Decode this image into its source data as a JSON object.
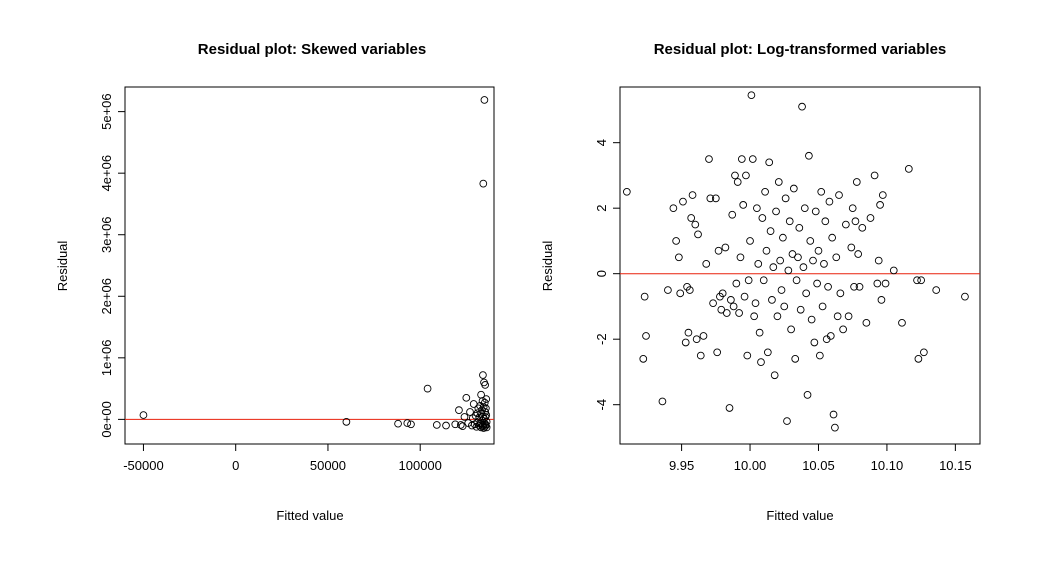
{
  "chart_data": [
    {
      "type": "scatter",
      "title": "Residual plot: Skewed variables",
      "xlabel": "Fitted value",
      "ylabel": "Residual",
      "xlim": [
        -60000,
        140000
      ],
      "ylim": [
        -400000,
        5400000
      ],
      "x_ticks": [
        -50000,
        0,
        50000,
        100000
      ],
      "x_tick_labels": [
        "-50000",
        "0",
        "50000",
        "100000"
      ],
      "y_ticks": [
        0,
        1000000,
        2000000,
        3000000,
        4000000,
        5000000
      ],
      "y_tick_labels": [
        "0e+00",
        "1e+06",
        "2e+06",
        "3e+06",
        "4e+06",
        "5e+06"
      ],
      "reference_line_y": 0,
      "reference_line_color": "#e8200c",
      "points": [
        {
          "x": -50000,
          "y": 70000
        },
        {
          "x": 60000,
          "y": -40000
        },
        {
          "x": 88000,
          "y": -70000
        },
        {
          "x": 93000,
          "y": -60000
        },
        {
          "x": 95000,
          "y": -80000
        },
        {
          "x": 104000,
          "y": 500000
        },
        {
          "x": 109000,
          "y": -90000
        },
        {
          "x": 114000,
          "y": -100000
        },
        {
          "x": 119000,
          "y": -80000
        },
        {
          "x": 121000,
          "y": 150000
        },
        {
          "x": 122000,
          "y": -90000
        },
        {
          "x": 123000,
          "y": -110000
        },
        {
          "x": 124000,
          "y": 40000
        },
        {
          "x": 125000,
          "y": 350000
        },
        {
          "x": 126000,
          "y": -60000
        },
        {
          "x": 127000,
          "y": 120000
        },
        {
          "x": 128000,
          "y": -100000
        },
        {
          "x": 128500,
          "y": 20000
        },
        {
          "x": 129000,
          "y": 250000
        },
        {
          "x": 129500,
          "y": -80000
        },
        {
          "x": 130000,
          "y": 60000
        },
        {
          "x": 130500,
          "y": -120000
        },
        {
          "x": 131000,
          "y": 100000
        },
        {
          "x": 131000,
          "y": -50000
        },
        {
          "x": 131500,
          "y": 180000
        },
        {
          "x": 132000,
          "y": -100000
        },
        {
          "x": 132000,
          "y": 30000
        },
        {
          "x": 132500,
          "y": 220000
        },
        {
          "x": 132500,
          "y": -70000
        },
        {
          "x": 133000,
          "y": 90000
        },
        {
          "x": 133000,
          "y": -130000
        },
        {
          "x": 133000,
          "y": 400000
        },
        {
          "x": 133500,
          "y": 150000
        },
        {
          "x": 133500,
          "y": -20000
        },
        {
          "x": 133800,
          "y": 300000
        },
        {
          "x": 133800,
          "y": -110000
        },
        {
          "x": 134000,
          "y": 720000
        },
        {
          "x": 134000,
          "y": 50000
        },
        {
          "x": 134200,
          "y": 3830000
        },
        {
          "x": 134200,
          "y": -90000
        },
        {
          "x": 134400,
          "y": 200000
        },
        {
          "x": 134400,
          "y": -140000
        },
        {
          "x": 134600,
          "y": 600000
        },
        {
          "x": 134600,
          "y": 10000
        },
        {
          "x": 134800,
          "y": 5190000
        },
        {
          "x": 134800,
          "y": -60000
        },
        {
          "x": 135000,
          "y": 270000
        },
        {
          "x": 135000,
          "y": -120000
        },
        {
          "x": 135200,
          "y": 560000
        },
        {
          "x": 135200,
          "y": 120000
        },
        {
          "x": 135400,
          "y": -80000
        },
        {
          "x": 135400,
          "y": 40000
        },
        {
          "x": 135600,
          "y": 180000
        },
        {
          "x": 135600,
          "y": -100000
        },
        {
          "x": 135800,
          "y": 330000
        },
        {
          "x": 135800,
          "y": 70000
        },
        {
          "x": 136000,
          "y": -40000
        },
        {
          "x": 136000,
          "y": -130000
        }
      ]
    },
    {
      "type": "scatter",
      "title": "Residual plot: Log-transformed variables",
      "xlabel": "Fitted value",
      "ylabel": "Residual",
      "xlim": [
        9.905,
        10.168
      ],
      "ylim": [
        -5.2,
        5.7
      ],
      "x_ticks": [
        9.95,
        10.0,
        10.05,
        10.1,
        10.15
      ],
      "x_tick_labels": [
        "9.95",
        "10.00",
        "10.05",
        "10.10",
        "10.15"
      ],
      "y_ticks": [
        -4,
        -2,
        0,
        2,
        4
      ],
      "y_tick_labels": [
        "-4",
        "-2",
        "0",
        "2",
        "4"
      ],
      "reference_line_y": 0,
      "reference_line_color": "#e8200c",
      "points": [
        {
          "x": 9.91,
          "y": 2.5
        },
        {
          "x": 9.922,
          "y": -2.6
        },
        {
          "x": 9.923,
          "y": -0.7
        },
        {
          "x": 9.924,
          "y": -1.9
        },
        {
          "x": 9.936,
          "y": -3.9
        },
        {
          "x": 9.94,
          "y": -0.5
        },
        {
          "x": 9.944,
          "y": 2.0
        },
        {
          "x": 9.946,
          "y": 1.0
        },
        {
          "x": 9.948,
          "y": 0.5
        },
        {
          "x": 9.949,
          "y": -0.6
        },
        {
          "x": 9.951,
          "y": 2.2
        },
        {
          "x": 9.953,
          "y": -2.1
        },
        {
          "x": 9.954,
          "y": -0.4
        },
        {
          "x": 9.955,
          "y": -1.8
        },
        {
          "x": 9.956,
          "y": -0.5
        },
        {
          "x": 9.957,
          "y": 1.7
        },
        {
          "x": 9.958,
          "y": 2.4
        },
        {
          "x": 9.96,
          "y": 1.5
        },
        {
          "x": 9.961,
          "y": -2.0
        },
        {
          "x": 9.962,
          "y": 1.2
        },
        {
          "x": 9.964,
          "y": -2.5
        },
        {
          "x": 9.966,
          "y": -1.9
        },
        {
          "x": 9.968,
          "y": 0.3
        },
        {
          "x": 9.97,
          "y": 3.5
        },
        {
          "x": 9.971,
          "y": 2.3
        },
        {
          "x": 9.973,
          "y": -0.9
        },
        {
          "x": 9.975,
          "y": 2.3
        },
        {
          "x": 9.976,
          "y": -2.4
        },
        {
          "x": 9.977,
          "y": 0.7
        },
        {
          "x": 9.978,
          "y": -0.7
        },
        {
          "x": 9.979,
          "y": -1.1
        },
        {
          "x": 9.98,
          "y": -0.6
        },
        {
          "x": 9.982,
          "y": 0.8
        },
        {
          "x": 9.983,
          "y": -1.2
        },
        {
          "x": 9.985,
          "y": -4.1
        },
        {
          "x": 9.986,
          "y": -0.8
        },
        {
          "x": 9.987,
          "y": 1.8
        },
        {
          "x": 9.988,
          "y": -1.0
        },
        {
          "x": 9.989,
          "y": 3.0
        },
        {
          "x": 9.99,
          "y": -0.3
        },
        {
          "x": 9.991,
          "y": 2.8
        },
        {
          "x": 9.992,
          "y": -1.2
        },
        {
          "x": 9.993,
          "y": 0.5
        },
        {
          "x": 9.994,
          "y": 3.5
        },
        {
          "x": 9.995,
          "y": 2.1
        },
        {
          "x": 9.996,
          "y": -0.7
        },
        {
          "x": 9.997,
          "y": 3.0
        },
        {
          "x": 9.998,
          "y": -2.5
        },
        {
          "x": 9.999,
          "y": -0.2
        },
        {
          "x": 10.0,
          "y": 1.0
        },
        {
          "x": 10.001,
          "y": 5.45
        },
        {
          "x": 10.002,
          "y": 3.5
        },
        {
          "x": 10.003,
          "y": -1.3
        },
        {
          "x": 10.004,
          "y": -0.9
        },
        {
          "x": 10.005,
          "y": 2.0
        },
        {
          "x": 10.006,
          "y": 0.3
        },
        {
          "x": 10.007,
          "y": -1.8
        },
        {
          "x": 10.008,
          "y": -2.7
        },
        {
          "x": 10.009,
          "y": 1.7
        },
        {
          "x": 10.01,
          "y": -0.2
        },
        {
          "x": 10.011,
          "y": 2.5
        },
        {
          "x": 10.012,
          "y": 0.7
        },
        {
          "x": 10.013,
          "y": -2.4
        },
        {
          "x": 10.014,
          "y": 3.4
        },
        {
          "x": 10.015,
          "y": 1.3
        },
        {
          "x": 10.016,
          "y": -0.8
        },
        {
          "x": 10.017,
          "y": 0.2
        },
        {
          "x": 10.018,
          "y": -3.1
        },
        {
          "x": 10.019,
          "y": 1.9
        },
        {
          "x": 10.02,
          "y": -1.3
        },
        {
          "x": 10.021,
          "y": 2.8
        },
        {
          "x": 10.022,
          "y": 0.4
        },
        {
          "x": 10.023,
          "y": -0.5
        },
        {
          "x": 10.024,
          "y": 1.1
        },
        {
          "x": 10.025,
          "y": -1.0
        },
        {
          "x": 10.026,
          "y": 2.3
        },
        {
          "x": 10.027,
          "y": -4.5
        },
        {
          "x": 10.028,
          "y": 0.1
        },
        {
          "x": 10.029,
          "y": 1.6
        },
        {
          "x": 10.03,
          "y": -1.7
        },
        {
          "x": 10.031,
          "y": 0.6
        },
        {
          "x": 10.032,
          "y": 2.6
        },
        {
          "x": 10.033,
          "y": -2.6
        },
        {
          "x": 10.034,
          "y": -0.2
        },
        {
          "x": 10.035,
          "y": 0.5
        },
        {
          "x": 10.036,
          "y": 1.4
        },
        {
          "x": 10.037,
          "y": -1.1
        },
        {
          "x": 10.038,
          "y": 5.1
        },
        {
          "x": 10.039,
          "y": 0.2
        },
        {
          "x": 10.04,
          "y": 2.0
        },
        {
          "x": 10.041,
          "y": -0.6
        },
        {
          "x": 10.042,
          "y": -3.7
        },
        {
          "x": 10.043,
          "y": 3.6
        },
        {
          "x": 10.044,
          "y": 1.0
        },
        {
          "x": 10.045,
          "y": -1.4
        },
        {
          "x": 10.046,
          "y": 0.4
        },
        {
          "x": 10.047,
          "y": -2.1
        },
        {
          "x": 10.048,
          "y": 1.9
        },
        {
          "x": 10.049,
          "y": -0.3
        },
        {
          "x": 10.05,
          "y": 0.7
        },
        {
          "x": 10.051,
          "y": -2.5
        },
        {
          "x": 10.052,
          "y": 2.5
        },
        {
          "x": 10.053,
          "y": -1.0
        },
        {
          "x": 10.054,
          "y": 0.3
        },
        {
          "x": 10.055,
          "y": 1.6
        },
        {
          "x": 10.056,
          "y": -2.0
        },
        {
          "x": 10.057,
          "y": -0.4
        },
        {
          "x": 10.058,
          "y": 2.2
        },
        {
          "x": 10.059,
          "y": -1.9
        },
        {
          "x": 10.06,
          "y": 1.1
        },
        {
          "x": 10.061,
          "y": -4.3
        },
        {
          "x": 10.062,
          "y": -4.7
        },
        {
          "x": 10.063,
          "y": 0.5
        },
        {
          "x": 10.064,
          "y": -1.3
        },
        {
          "x": 10.065,
          "y": 2.4
        },
        {
          "x": 10.066,
          "y": -0.6
        },
        {
          "x": 10.068,
          "y": -1.7
        },
        {
          "x": 10.07,
          "y": 1.5
        },
        {
          "x": 10.072,
          "y": -1.3
        },
        {
          "x": 10.074,
          "y": 0.8
        },
        {
          "x": 10.075,
          "y": 2.0
        },
        {
          "x": 10.076,
          "y": -0.4
        },
        {
          "x": 10.077,
          "y": 1.6
        },
        {
          "x": 10.078,
          "y": 2.8
        },
        {
          "x": 10.079,
          "y": 0.6
        },
        {
          "x": 10.08,
          "y": -0.4
        },
        {
          "x": 10.082,
          "y": 1.4
        },
        {
          "x": 10.085,
          "y": -1.5
        },
        {
          "x": 10.088,
          "y": 1.7
        },
        {
          "x": 10.091,
          "y": 3.0
        },
        {
          "x": 10.093,
          "y": -0.3
        },
        {
          "x": 10.094,
          "y": 0.4
        },
        {
          "x": 10.095,
          "y": 2.1
        },
        {
          "x": 10.096,
          "y": -0.8
        },
        {
          "x": 10.097,
          "y": 2.4
        },
        {
          "x": 10.099,
          "y": -0.3
        },
        {
          "x": 10.105,
          "y": 0.1
        },
        {
          "x": 10.111,
          "y": -1.5
        },
        {
          "x": 10.116,
          "y": 3.2
        },
        {
          "x": 10.122,
          "y": -0.2
        },
        {
          "x": 10.123,
          "y": -2.6
        },
        {
          "x": 10.125,
          "y": -0.2
        },
        {
          "x": 10.127,
          "y": -2.4
        },
        {
          "x": 10.136,
          "y": -0.5
        },
        {
          "x": 10.157,
          "y": -0.7
        }
      ]
    }
  ]
}
